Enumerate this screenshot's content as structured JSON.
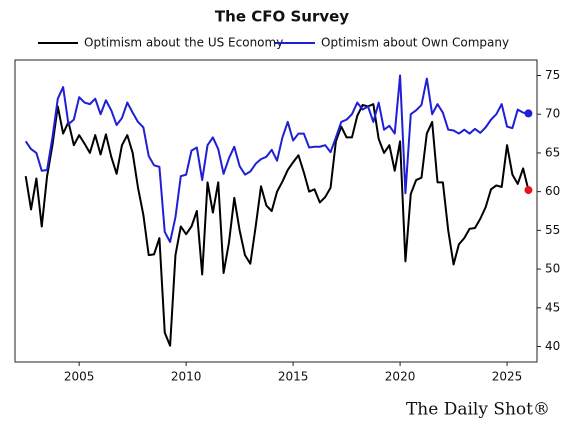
{
  "chart_data": {
    "type": "line",
    "title": "The CFO Survey",
    "source": "The Daily Shot®",
    "x": [
      2002.5,
      2002.75,
      2003,
      2003.25,
      2003.5,
      2003.75,
      2004,
      2004.25,
      2004.5,
      2004.75,
      2005,
      2005.25,
      2005.5,
      2005.75,
      2006,
      2006.25,
      2006.5,
      2006.75,
      2007,
      2007.25,
      2007.5,
      2007.75,
      2008,
      2008.25,
      2008.5,
      2008.75,
      2009,
      2009.25,
      2009.5,
      2009.75,
      2010,
      2010.25,
      2010.5,
      2010.75,
      2011,
      2011.25,
      2011.5,
      2011.75,
      2012,
      2012.25,
      2012.5,
      2012.75,
      2013,
      2013.25,
      2013.5,
      2013.75,
      2014,
      2014.25,
      2014.5,
      2014.75,
      2015,
      2015.25,
      2015.5,
      2015.75,
      2016,
      2016.25,
      2016.5,
      2016.75,
      2017,
      2017.25,
      2017.5,
      2017.75,
      2018,
      2018.25,
      2018.5,
      2018.75,
      2019,
      2019.25,
      2019.5,
      2019.75,
      2020,
      2020.25,
      2020.5,
      2020.75,
      2021,
      2021.25,
      2021.5,
      2021.75,
      2022,
      2022.25,
      2022.5,
      2022.75,
      2023,
      2023.25,
      2023.5,
      2023.75,
      2024,
      2024.25,
      2024.5,
      2024.75,
      2025,
      2025.25,
      2025.5,
      2025.75,
      2026
    ],
    "series": [
      {
        "name": "Optimism about the US Economy",
        "color": "#000000",
        "end_marker_color": "#e8141c",
        "values": [
          62,
          57.7,
          61.7,
          55.5,
          62,
          66,
          71,
          67.5,
          69,
          66,
          67.3,
          66.2,
          65,
          67.3,
          64.8,
          67.4,
          64.5,
          62.3,
          66,
          67.3,
          65,
          60.5,
          57,
          51.8,
          51.9,
          54,
          41.8,
          40.1,
          51.8,
          55.5,
          54.5,
          55.5,
          57.5,
          49.3,
          61.2,
          57.3,
          61.2,
          49.5,
          53.4,
          59.2,
          55,
          51.8,
          50.7,
          55.5,
          60.7,
          58.2,
          57.5,
          60,
          61.3,
          62.8,
          63.8,
          64.7,
          62.5,
          60,
          60.3,
          58.6,
          59.3,
          60.5,
          66.5,
          68.4,
          67,
          67,
          69.8,
          71.2,
          71,
          71.3,
          66.8,
          65,
          66,
          62.7,
          66.5,
          51,
          59.7,
          61.5,
          61.8,
          67.5,
          69,
          61.2,
          61.2,
          55,
          50.6,
          53.2,
          54,
          55.2,
          55.3,
          56.5,
          58,
          60.3,
          60.8,
          60.6,
          66,
          62.2,
          61,
          63,
          60.2
        ]
      },
      {
        "name": "Optimism about Own Company",
        "color": "#1f1fd6",
        "end_marker_color": "#1f1fd6",
        "values": [
          66.5,
          65.5,
          65,
          62.7,
          62.8,
          67,
          72,
          73.5,
          68.7,
          69.3,
          72.2,
          71.5,
          71.3,
          72,
          70,
          71.8,
          70.5,
          68.6,
          69.5,
          71.5,
          70.2,
          69,
          68.3,
          64.6,
          63.4,
          63.2,
          54.8,
          53.5,
          56.7,
          62,
          62.2,
          65.3,
          65.7,
          61.5,
          66,
          67,
          65.5,
          62.3,
          64.3,
          65.8,
          63.3,
          62.2,
          62.6,
          63.6,
          64.2,
          64.5,
          65.4,
          64,
          67,
          69,
          66.6,
          67.5,
          67.5,
          65.7,
          65.8,
          65.8,
          66,
          65.1,
          67,
          69,
          69.3,
          70,
          71.5,
          70.6,
          71,
          69,
          71.5,
          68,
          68.5,
          67.5,
          75,
          59.8,
          70,
          70.5,
          71.2,
          74.6,
          70,
          71.3,
          70.2,
          68,
          67.9,
          67.5,
          68,
          67.5,
          68.1,
          67.6,
          68.3,
          69.3,
          70,
          71.3,
          68.4,
          68.2,
          70.6,
          70.2,
          70.1
        ]
      }
    ],
    "xlim": [
      2002,
      2026.4
    ],
    "xticks": [
      2005,
      2010,
      2015,
      2020,
      2025
    ],
    "ylim": [
      38,
      77
    ],
    "yticks": [
      40,
      45,
      50,
      55,
      60,
      65,
      70,
      75
    ],
    "grid": false
  }
}
